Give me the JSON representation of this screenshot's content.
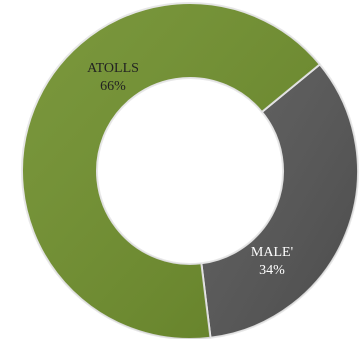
{
  "chart_data": {
    "type": "pie",
    "donut": true,
    "legend": "none",
    "start_angle_deg": 83,
    "slices": [
      {
        "label": "MALE'",
        "value": 34,
        "value_text": "34%",
        "color": "#555555",
        "label_color": "#ffffff"
      },
      {
        "label": "ATOLLS",
        "value": 66,
        "value_text": "66%",
        "color": "#6f8f2c",
        "label_color": "#222222"
      }
    ]
  }
}
